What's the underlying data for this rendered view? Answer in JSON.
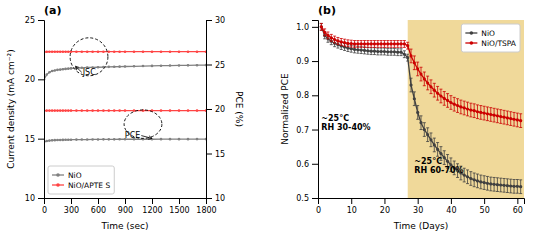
{
  "chart_data": [
    {
      "type": "line",
      "title": "(a)",
      "x_label": "Time (sec)",
      "y_label": "Current density (mA cm⁻²)",
      "y2_label": "PCE (%)",
      "x": [
        0,
        30,
        60,
        90,
        120,
        150,
        180,
        210,
        240,
        270,
        300,
        360,
        420,
        480,
        540,
        600,
        660,
        720,
        780,
        840,
        900,
        1000,
        1100,
        1200,
        1300,
        1400,
        1500,
        1600,
        1700,
        1800
      ],
      "xlim": [
        0,
        1800
      ],
      "xticks": [
        0,
        300,
        600,
        900,
        1200,
        1500,
        1800
      ],
      "ylim": [
        10,
        25
      ],
      "yticks": [
        10,
        15,
        20,
        25
      ],
      "y2lim": [
        10,
        30
      ],
      "y2ticks": [
        10,
        15,
        20,
        25,
        30
      ],
      "series": [
        {
          "name": "NiO",
          "color": "#808080",
          "marker": "circle",
          "values": [
            20.0,
            20.4,
            20.6,
            20.7,
            20.75,
            20.8,
            20.82,
            20.85,
            20.88,
            20.9,
            20.92,
            20.95,
            20.97,
            21.0,
            21.0,
            21.02,
            21.03,
            21.05,
            21.06,
            21.07,
            21.08,
            21.1,
            21.12,
            21.13,
            21.15,
            21.16,
            21.17,
            21.18,
            21.19,
            21.2
          ]
        },
        {
          "name": "NiO/APTE S",
          "color": "#ff4444",
          "marker": "circle",
          "values": [
            22.3,
            22.32,
            22.33,
            22.33,
            22.33,
            22.33,
            22.33,
            22.33,
            22.33,
            22.33,
            22.33,
            22.33,
            22.33,
            22.33,
            22.33,
            22.33,
            22.33,
            22.33,
            22.33,
            22.33,
            22.33,
            22.33,
            22.33,
            22.33,
            22.33,
            22.33,
            22.33,
            22.33,
            22.33,
            22.33
          ]
        },
        {
          "color": "#808080",
          "axis": "y2",
          "marker": "circle",
          "values": [
            16.3,
            16.4,
            16.45,
            16.48,
            16.5,
            16.51,
            16.52,
            16.53,
            16.54,
            16.54,
            16.55,
            16.56,
            16.57,
            16.57,
            16.58,
            16.58,
            16.59,
            16.59,
            16.59,
            16.6,
            16.6,
            16.6,
            16.6,
            16.6,
            16.61,
            16.61,
            16.61,
            16.61,
            16.62,
            16.62
          ]
        },
        {
          "color": "#ff4444",
          "axis": "y2",
          "marker": "circle",
          "values": [
            19.8,
            19.82,
            19.82,
            19.82,
            19.82,
            19.82,
            19.82,
            19.82,
            19.82,
            19.82,
            19.82,
            19.82,
            19.82,
            19.82,
            19.82,
            19.82,
            19.82,
            19.82,
            19.82,
            19.82,
            19.82,
            19.82,
            19.82,
            19.82,
            19.82,
            19.82,
            19.82,
            19.82,
            19.82,
            19.82
          ]
        }
      ],
      "legend": "lower left",
      "grid": false,
      "annotations": [
        {
          "text": "JSC",
          "x": 350,
          "y": 21.1,
          "text_x": 430,
          "text_y": 20.3
        },
        {
          "text": "PCE",
          "x": 1200,
          "y": 16.7,
          "text_x": 1070,
          "text_y": 16.62,
          "axis": "y2"
        }
      ],
      "ellipses": [
        {
          "x": 500,
          "y": 21.9,
          "width": 420,
          "height": 3.2,
          "line_style": "dashed"
        },
        {
          "x": 1100,
          "y": 18.3,
          "width": 420,
          "height": 3.2,
          "axis": "y2",
          "line_style": "dashed"
        }
      ]
    },
    {
      "type": "line",
      "title": "(b)",
      "x_label": "Time (Days)",
      "y_label": "Normalized PCE",
      "x": [
        1,
        2,
        3,
        4,
        5,
        6,
        7,
        8,
        9,
        10,
        11,
        12,
        13,
        14,
        15,
        16,
        17,
        18,
        19,
        20,
        21,
        22,
        23,
        24,
        25,
        26,
        27,
        28,
        29,
        30,
        31,
        32,
        33,
        34,
        35,
        36,
        37,
        38,
        39,
        40,
        41,
        42,
        43,
        44,
        45,
        46,
        47,
        48,
        49,
        50,
        51,
        52,
        53,
        54,
        55,
        56,
        57,
        58,
        59,
        60,
        61
      ],
      "xlim": [
        0,
        62
      ],
      "xticks": [
        0,
        10,
        20,
        30,
        40,
        50,
        60
      ],
      "ylim": [
        0.5,
        1.02
      ],
      "yticks": [
        0.5,
        0.6,
        0.7,
        0.8,
        0.9,
        {
          "value": 1.0,
          "label": "1.0"
        }
      ],
      "series": [
        {
          "name": "NiO",
          "color": "#404040",
          "marker": "circle",
          "values": [
            1.0,
            0.975,
            0.965,
            0.958,
            0.952,
            0.948,
            0.944,
            0.941,
            0.938,
            0.936,
            0.934,
            0.933,
            0.932,
            0.931,
            0.93,
            0.929,
            0.929,
            0.928,
            0.928,
            0.928,
            0.927,
            0.927,
            0.927,
            0.926,
            0.926,
            0.92,
            0.91,
            0.83,
            0.79,
            0.75,
            0.72,
            0.7,
            0.685,
            0.67,
            0.655,
            0.642,
            0.63,
            0.618,
            0.607,
            0.597,
            0.588,
            0.58,
            0.573,
            0.567,
            0.562,
            0.557,
            0.553,
            0.55,
            0.547,
            0.545,
            0.543,
            0.541,
            0.54,
            0.539,
            0.538,
            0.537,
            0.536,
            0.535,
            0.534,
            0.534,
            0.533
          ],
          "errors": [
            0.01,
            0.01,
            0.01,
            0.01,
            0.01,
            0.01,
            0.01,
            0.01,
            0.01,
            0.01,
            0.01,
            0.01,
            0.01,
            0.01,
            0.01,
            0.01,
            0.01,
            0.01,
            0.01,
            0.01,
            0.01,
            0.01,
            0.01,
            0.01,
            0.01,
            0.01,
            0.01,
            0.02,
            0.02,
            0.02,
            0.02,
            0.02,
            0.02,
            0.02,
            0.02,
            0.02,
            0.02,
            0.02,
            0.02,
            0.02,
            0.02,
            0.02,
            0.02,
            0.02,
            0.02,
            0.02,
            0.02,
            0.02,
            0.02,
            0.02,
            0.02,
            0.02,
            0.02,
            0.02,
            0.02,
            0.02,
            0.02,
            0.02,
            0.02,
            0.02,
            0.02
          ]
        },
        {
          "name": "NiO/TSPA",
          "color": "#cc0000",
          "marker": "circle",
          "values": [
            1.0,
            0.984,
            0.975,
            0.968,
            0.963,
            0.959,
            0.956,
            0.954,
            0.952,
            0.951,
            0.95,
            0.95,
            0.95,
            0.95,
            0.95,
            0.95,
            0.95,
            0.95,
            0.95,
            0.95,
            0.95,
            0.95,
            0.95,
            0.95,
            0.95,
            0.95,
            0.945,
            0.915,
            0.895,
            0.877,
            0.862,
            0.848,
            0.836,
            0.825,
            0.815,
            0.806,
            0.798,
            0.791,
            0.785,
            0.779,
            0.774,
            0.77,
            0.766,
            0.763,
            0.76,
            0.757,
            0.755,
            0.752,
            0.75,
            0.748,
            0.746,
            0.744,
            0.742,
            0.74,
            0.738,
            0.736,
            0.734,
            0.732,
            0.73,
            0.728,
            0.726
          ],
          "errors": [
            0.01,
            0.01,
            0.01,
            0.01,
            0.01,
            0.01,
            0.01,
            0.01,
            0.01,
            0.01,
            0.01,
            0.01,
            0.01,
            0.01,
            0.01,
            0.01,
            0.01,
            0.01,
            0.01,
            0.01,
            0.01,
            0.01,
            0.01,
            0.01,
            0.01,
            0.01,
            0.01,
            0.02,
            0.02,
            0.02,
            0.02,
            0.02,
            0.02,
            0.02,
            0.02,
            0.02,
            0.02,
            0.02,
            0.02,
            0.02,
            0.02,
            0.02,
            0.02,
            0.02,
            0.02,
            0.02,
            0.02,
            0.02,
            0.02,
            0.02,
            0.02,
            0.02,
            0.02,
            0.02,
            0.02,
            0.02,
            0.02,
            0.02,
            0.02,
            0.02,
            0.02
          ]
        }
      ],
      "legend": "upper right",
      "grid": false,
      "shaded_regions": [
        {
          "x0": 27,
          "x1": 62,
          "color": "#f0d99a"
        }
      ],
      "annotations": [
        {
          "text": "~25°C\nRH 30-40%",
          "x": 1,
          "y": 0.72
        },
        {
          "text": "~25°C\nRH 60-70%",
          "x": 29,
          "y": 0.595
        }
      ]
    }
  ]
}
